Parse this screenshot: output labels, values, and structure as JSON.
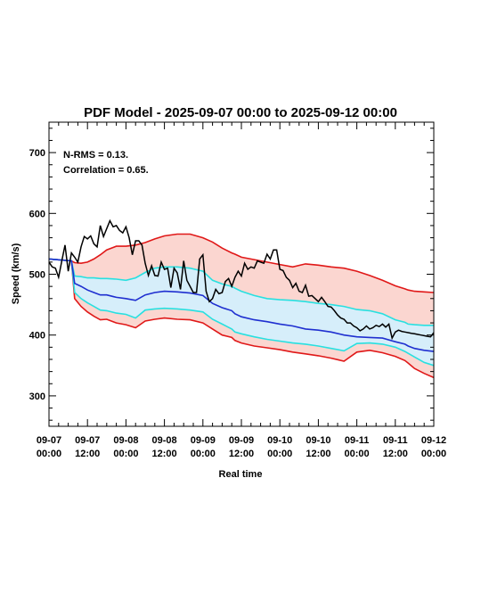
{
  "chart_data": {
    "type": "line",
    "title": "PDF Model - 2025-09-07 00:00 to 2025-09-12 00:00",
    "xlabel": "Real time",
    "ylabel": "Speed (km/s)",
    "ylim": [
      250,
      750
    ],
    "xlim": [
      0,
      120
    ],
    "annotations": [
      "N-RMS = 0.13.",
      "Correlation = 0.65."
    ],
    "y_ticks": [
      "300",
      "400",
      "500",
      "600",
      "700"
    ],
    "x_ticks": [
      {
        "date": "09-07",
        "time": "00:00"
      },
      {
        "date": "09-07",
        "time": "12:00"
      },
      {
        "date": "09-08",
        "time": "00:00"
      },
      {
        "date": "09-08",
        "time": "12:00"
      },
      {
        "date": "09-09",
        "time": "00:00"
      },
      {
        "date": "09-09",
        "time": "12:00"
      },
      {
        "date": "09-10",
        "time": "00:00"
      },
      {
        "date": "09-10",
        "time": "12:00"
      },
      {
        "date": "09-11",
        "time": "00:00"
      },
      {
        "date": "09-11",
        "time": "12:00"
      },
      {
        "date": "09-12",
        "time": "00:00"
      }
    ],
    "colors": {
      "observed": "#000000",
      "median": "#1f2fd0",
      "inner_band": "#28e0e0",
      "outer_band": "#e01818",
      "inner_fill": "#d6eefa",
      "outer_fill": "#fbd6d0"
    },
    "model": {
      "x": [
        0,
        7,
        8,
        10,
        12,
        14,
        16,
        18,
        21,
        24,
        27,
        30,
        33,
        36,
        40,
        44,
        48,
        51,
        54,
        57,
        58,
        60,
        64,
        68,
        72,
        76,
        80,
        84,
        88,
        92,
        96,
        100,
        104,
        108,
        111,
        112,
        114,
        117,
        120
      ],
      "upper": [
        525,
        522,
        519,
        518,
        520,
        525,
        532,
        540,
        546,
        546,
        548,
        552,
        558,
        563,
        566,
        566,
        560,
        553,
        543,
        535,
        533,
        528,
        524,
        520,
        516,
        512,
        517,
        515,
        512,
        510,
        505,
        498,
        490,
        481,
        476,
        474,
        472,
        471,
        470
      ],
      "inner_upper": [
        525,
        522,
        497,
        496,
        494,
        494,
        493,
        493,
        492,
        490,
        494,
        503,
        510,
        512,
        512,
        510,
        505,
        490,
        484,
        480,
        477,
        472,
        465,
        460,
        458,
        457,
        455,
        452,
        450,
        447,
        442,
        440,
        435,
        425,
        421,
        418,
        417,
        416,
        416
      ],
      "median": [
        525,
        522,
        485,
        480,
        474,
        470,
        466,
        466,
        462,
        460,
        457,
        466,
        470,
        472,
        471,
        469,
        465,
        452,
        445,
        440,
        435,
        430,
        425,
        422,
        418,
        415,
        410,
        408,
        405,
        400,
        397,
        396,
        395,
        389,
        385,
        382,
        378,
        375,
        373
      ],
      "inner_lower": [
        525,
        522,
        470,
        460,
        453,
        447,
        441,
        440,
        436,
        434,
        428,
        441,
        443,
        444,
        443,
        441,
        438,
        426,
        418,
        410,
        405,
        402,
        397,
        393,
        390,
        387,
        385,
        382,
        378,
        374,
        386,
        387,
        385,
        380,
        373,
        370,
        364,
        355,
        350
      ],
      "lower": [
        525,
        522,
        460,
        447,
        438,
        431,
        425,
        426,
        420,
        417,
        412,
        423,
        426,
        428,
        426,
        425,
        420,
        410,
        400,
        396,
        391,
        387,
        382,
        379,
        376,
        372,
        369,
        366,
        362,
        357,
        372,
        375,
        371,
        365,
        358,
        354,
        345,
        337,
        330
      ]
    },
    "observed": {
      "x": [
        0,
        1,
        2,
        3,
        4,
        5,
        6,
        7,
        8,
        9,
        10,
        11,
        12,
        13,
        14,
        15,
        16,
        17,
        18,
        19,
        20,
        21,
        22,
        23,
        24,
        25,
        26,
        27,
        28,
        29,
        30,
        31,
        32,
        33,
        34,
        35,
        36,
        37,
        38,
        39,
        40,
        41,
        42,
        43,
        44,
        45,
        46,
        47,
        48,
        49,
        50,
        51,
        52,
        53,
        54,
        55,
        56,
        57,
        58,
        59,
        60,
        61,
        62,
        63,
        64,
        65,
        66,
        67,
        68,
        69,
        70,
        71,
        72,
        73,
        74,
        75,
        76,
        77,
        78,
        79,
        80,
        81,
        82,
        83,
        84,
        85,
        86,
        87,
        88,
        89,
        90,
        91,
        92,
        93,
        94,
        95,
        96,
        97,
        98,
        99,
        100,
        101,
        102,
        103,
        104,
        105,
        106,
        107,
        108,
        109,
        110,
        111,
        112,
        113,
        114,
        115,
        116,
        117,
        118,
        119,
        120
      ],
      "speed": [
        520,
        512,
        510,
        495,
        522,
        548,
        505,
        535,
        528,
        520,
        545,
        562,
        558,
        563,
        550,
        545,
        580,
        562,
        575,
        588,
        578,
        580,
        572,
        568,
        578,
        560,
        532,
        555,
        555,
        548,
        518,
        498,
        514,
        498,
        497,
        520,
        508,
        510,
        478,
        510,
        502,
        475,
        522,
        490,
        480,
        470,
        470,
        525,
        532,
        472,
        455,
        460,
        475,
        468,
        470,
        488,
        493,
        480,
        495,
        505,
        497,
        518,
        508,
        512,
        510,
        522,
        520,
        518,
        533,
        525,
        540,
        540,
        508,
        506,
        495,
        490,
        478,
        485,
        472,
        470,
        482,
        464,
        465,
        460,
        455,
        462,
        455,
        447,
        446,
        440,
        433,
        428,
        426,
        420,
        420,
        415,
        412,
        407,
        410,
        415,
        410,
        412,
        416,
        414,
        418,
        413,
        418,
        395,
        405,
        408,
        406,
        405,
        404,
        403,
        402,
        401,
        400,
        399,
        398,
        397,
        404
      ]
    }
  }
}
